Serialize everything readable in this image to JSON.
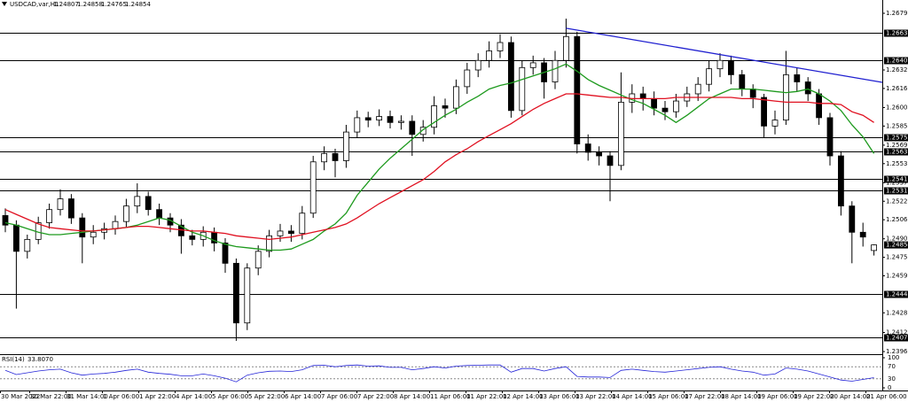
{
  "chart_data": [
    {
      "type": "candlestick",
      "symbol": "USDCAD,var,H1",
      "ohlc": {
        "open": 1.24807,
        "high": 1.24858,
        "low": 1.24765,
        "close": 1.24854
      },
      "x_labels": [
        "30 Mar 2022",
        "30 Mar 22:00",
        "31 Mar 14:00",
        "1 Apr 06:00",
        "1 Apr 22:00",
        "4 Apr 14:00",
        "5 Apr 06:00",
        "5 Apr 22:00",
        "6 Apr 14:00",
        "7 Apr 06:00",
        "7 Apr 22:00",
        "8 Apr 14:00",
        "11 Apr 06:00",
        "11 Apr 22:00",
        "12 Apr 14:00",
        "13 Apr 06:00",
        "13 Apr 22:00",
        "14 Apr 14:00",
        "15 Apr 06:00",
        "17 Apr 22:00",
        "18 Apr 14:00",
        "19 Apr 06:00",
        "19 Apr 22:00",
        "20 Apr 14:00",
        "21 Apr 06:00"
      ],
      "open": [
        1.251,
        1.2502,
        1.248,
        1.249,
        1.2504,
        1.2515,
        1.2524,
        1.2508,
        1.2492,
        1.2496,
        1.2499,
        1.2505,
        1.2518,
        1.2526,
        1.2515,
        1.2508,
        1.2502,
        1.2493,
        1.249,
        1.2496,
        1.2487,
        1.247,
        1.242,
        1.2466,
        1.248,
        1.2493,
        1.2497,
        1.2495,
        1.2512,
        1.2555,
        1.2562,
        1.2556,
        1.258,
        1.2592,
        1.259,
        1.2593,
        1.2588,
        1.2589,
        1.2578,
        1.2584,
        1.2602,
        1.26,
        1.2618,
        1.2632,
        1.264,
        1.2648,
        1.2655,
        1.2598,
        1.2634,
        1.2638,
        1.2622,
        1.264,
        1.266,
        1.257,
        1.2563,
        1.256,
        1.2552,
        1.2605,
        1.2612,
        1.2608,
        1.26,
        1.2597,
        1.2606,
        1.2612,
        1.262,
        1.2633,
        1.264,
        1.2628,
        1.2616,
        1.2609,
        1.2585,
        1.259,
        1.2628,
        1.2622,
        1.2612,
        1.2592,
        1.256,
        1.2518,
        1.2496,
        1.24807
      ],
      "high": [
        1.2516,
        1.2506,
        1.2494,
        1.2509,
        1.252,
        1.2532,
        1.2528,
        1.2512,
        1.2502,
        1.2504,
        1.251,
        1.2524,
        1.2537,
        1.253,
        1.252,
        1.2512,
        1.2507,
        1.2498,
        1.2501,
        1.25,
        1.2491,
        1.2474,
        1.247,
        1.2485,
        1.2498,
        1.2503,
        1.2502,
        1.2518,
        1.256,
        1.2568,
        1.2566,
        1.2586,
        1.2598,
        1.2597,
        1.2599,
        1.2598,
        1.2594,
        1.2594,
        1.259,
        1.261,
        1.2608,
        1.2624,
        1.2638,
        1.2646,
        1.2656,
        1.2662,
        1.266,
        1.264,
        1.2644,
        1.2642,
        1.2648,
        1.2675,
        1.2664,
        1.2578,
        1.2568,
        1.2564,
        1.263,
        1.262,
        1.2618,
        1.2614,
        1.2606,
        1.2612,
        1.2618,
        1.2626,
        1.264,
        1.2646,
        1.2644,
        1.2632,
        1.262,
        1.2612,
        1.2598,
        1.2648,
        1.2634,
        1.2626,
        1.2616,
        1.2596,
        1.2564,
        1.2522,
        1.2504,
        1.24858
      ],
      "low": [
        1.2496,
        1.2432,
        1.2474,
        1.2486,
        1.2499,
        1.251,
        1.2503,
        1.247,
        1.2486,
        1.249,
        1.2494,
        1.25,
        1.2512,
        1.251,
        1.2502,
        1.2496,
        1.2478,
        1.2485,
        1.2484,
        1.248,
        1.2462,
        1.2405,
        1.2414,
        1.246,
        1.2475,
        1.2488,
        1.2488,
        1.249,
        1.2508,
        1.2548,
        1.2542,
        1.255,
        1.2575,
        1.2584,
        1.2585,
        1.2583,
        1.2582,
        1.256,
        1.2572,
        1.2578,
        1.2592,
        1.2595,
        1.2612,
        1.2626,
        1.2634,
        1.2642,
        1.2592,
        1.2594,
        1.2628,
        1.2608,
        1.2616,
        1.2634,
        1.2562,
        1.2556,
        1.2552,
        1.2522,
        1.2548,
        1.2596,
        1.2598,
        1.2594,
        1.259,
        1.2592,
        1.2601,
        1.2606,
        1.2614,
        1.2626,
        1.262,
        1.261,
        1.26,
        1.2575,
        1.2578,
        1.2586,
        1.2614,
        1.2606,
        1.2586,
        1.2552,
        1.251,
        1.247,
        1.2484,
        1.24765
      ],
      "close": [
        1.2502,
        1.248,
        1.249,
        1.2504,
        1.2515,
        1.2524,
        1.2508,
        1.2492,
        1.2496,
        1.2499,
        1.2505,
        1.2518,
        1.2526,
        1.2515,
        1.2508,
        1.2502,
        1.2493,
        1.249,
        1.2496,
        1.2487,
        1.247,
        1.242,
        1.2466,
        1.248,
        1.2493,
        1.2497,
        1.2495,
        1.2512,
        1.2555,
        1.2562,
        1.2556,
        1.258,
        1.2592,
        1.259,
        1.2593,
        1.2588,
        1.2589,
        1.2578,
        1.2584,
        1.2602,
        1.26,
        1.2618,
        1.2632,
        1.264,
        1.2648,
        1.2655,
        1.2598,
        1.2634,
        1.2638,
        1.2622,
        1.264,
        1.266,
        1.257,
        1.2563,
        1.256,
        1.2552,
        1.2605,
        1.2612,
        1.2608,
        1.26,
        1.2597,
        1.2606,
        1.2612,
        1.262,
        1.2633,
        1.264,
        1.2628,
        1.2616,
        1.2609,
        1.2585,
        1.259,
        1.2628,
        1.2622,
        1.2612,
        1.2592,
        1.256,
        1.2518,
        1.2496,
        1.2492,
        1.24854
      ],
      "series": [
        {
          "color": "#1e9a1e",
          "values": [
            1.2504,
            1.2502,
            1.2499,
            1.2496,
            1.2494,
            1.2494,
            1.2495,
            1.2496,
            1.2497,
            1.2498,
            1.2499,
            1.25,
            1.2502,
            1.2505,
            1.2508,
            1.2506,
            1.2501,
            1.2496,
            1.2493,
            1.2489,
            1.2486,
            1.2484,
            1.2483,
            1.2482,
            1.2481,
            1.2481,
            1.2482,
            1.2486,
            1.249,
            1.2497,
            1.2503,
            1.2512,
            1.2527,
            1.2538,
            1.2549,
            1.2558,
            1.2566,
            1.2574,
            1.2582,
            1.2588,
            1.2594,
            1.2599,
            1.2605,
            1.261,
            1.2616,
            1.2619,
            1.2621,
            1.2624,
            1.2627,
            1.263,
            1.2633,
            1.2637,
            1.2631,
            1.2624,
            1.2619,
            1.2615,
            1.2611,
            1.2607,
            1.2604,
            1.2599,
            1.2594,
            1.2588,
            1.2594,
            1.2601,
            1.2608,
            1.2612,
            1.2616,
            1.2616,
            1.2616,
            1.2615,
            1.2614,
            1.2613,
            1.2614,
            1.2616,
            1.2612,
            1.2606,
            1.2598,
            1.2586,
            1.2576,
            1.2562
          ]
        },
        {
          "color": "#e01020",
          "values": [
            1.2515,
            1.2511,
            1.2507,
            1.2503,
            1.25,
            1.2499,
            1.2498,
            1.2497,
            1.2497,
            1.2498,
            1.2499,
            1.25,
            1.2501,
            1.2501,
            1.25,
            1.2499,
            1.2498,
            1.2497,
            1.2497,
            1.2496,
            1.2495,
            1.2493,
            1.2492,
            1.2491,
            1.249,
            1.2491,
            1.2492,
            1.2494,
            1.2496,
            1.2498,
            1.25,
            1.2503,
            1.2508,
            1.2514,
            1.252,
            1.2525,
            1.253,
            1.2535,
            1.254,
            1.2547,
            1.2555,
            1.2561,
            1.2566,
            1.2572,
            1.2577,
            1.2582,
            1.2587,
            1.2593,
            1.2599,
            1.2604,
            1.2608,
            1.2612,
            1.2612,
            1.2611,
            1.261,
            1.2609,
            1.2609,
            1.2608,
            1.2608,
            1.2608,
            1.2608,
            1.2609,
            1.2609,
            1.2609,
            1.2609,
            1.2609,
            1.2609,
            1.2608,
            1.2608,
            1.2607,
            1.2606,
            1.2605,
            1.2605,
            1.2605,
            1.2604,
            1.2604,
            1.2603,
            1.2597,
            1.2594,
            1.2588
          ]
        }
      ],
      "trendline": {
        "color": "#2020d0",
        "values": [
          1.2667,
          1.26216
        ]
      },
      "levels": [
        1.26633,
        {
          "value": 1.264,
          "label": "1.26400"
        },
        1.25753,
        1.25639,
        1.25411,
        1.25314,
        {
          "value": 1.2444,
          "label": "1.24440"
        },
        1.24079
      ],
      "ylim": [
        1.23953,
        1.26847
      ],
      "yticks": [
        1.26795,
        {
          "value": 1.2632,
          "label": "1.26320"
        },
        1.26165,
        1.26005,
        {
          "value": 1.2585,
          "label": "1.25850"
        },
        {
          "value": 1.2569,
          "label": "1.25690"
        },
        1.25535,
        1.25375,
        {
          "value": 1.2522,
          "label": "1.25220"
        },
        1.25065,
        1.24905,
        {
          "value": 1.2475,
          "label": "1.24750"
        },
        1.24595,
        1.24285,
        {
          "value": 1.2412,
          "label": "1.24120"
        },
        {
          "value": 1.2396,
          "label": "1.23960"
        }
      ]
    },
    {
      "type": "line",
      "title": "RSI(14)",
      "current": 33.807,
      "current_label": "33.8070",
      "color": "#2424d8",
      "values": [
        58,
        44,
        50,
        56,
        60,
        62,
        50,
        42,
        46,
        48,
        52,
        58,
        62,
        52,
        48,
        45,
        40,
        40,
        46,
        40,
        32,
        20,
        42,
        50,
        55,
        56,
        54,
        60,
        74,
        75,
        70,
        74,
        76,
        72,
        73,
        68,
        68,
        60,
        64,
        70,
        66,
        72,
        74,
        75,
        76,
        76,
        52,
        64,
        64,
        56,
        64,
        70,
        38,
        36,
        36,
        34,
        58,
        62,
        58,
        54,
        52,
        56,
        60,
        64,
        68,
        70,
        62,
        56,
        52,
        42,
        46,
        66,
        62,
        56,
        46,
        36,
        26,
        22,
        28,
        33.807
      ],
      "ylim": [
        0,
        100
      ],
      "yticks": [
        100,
        70,
        30,
        0
      ]
    }
  ]
}
